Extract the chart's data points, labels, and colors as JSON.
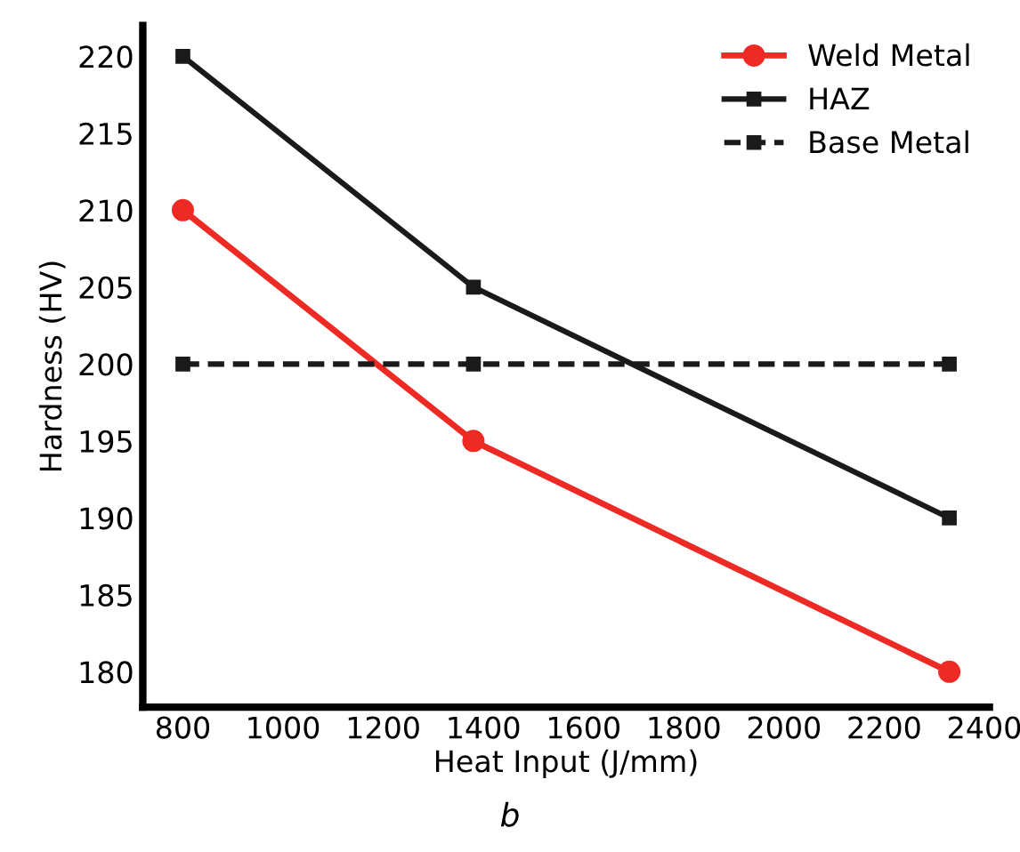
{
  "chart_data": {
    "type": "line",
    "xlabel": "Heat Input (J/mm)",
    "ylabel": "Hardness (HV)",
    "annotations": [
      "b"
    ],
    "xlim": [
      720,
      2410
    ],
    "xticks": [
      800,
      1000,
      1200,
      1400,
      1600,
      1800,
      2000,
      2200,
      2400
    ],
    "ylim": [
      177.7,
      222
    ],
    "yticks": [
      180,
      185,
      190,
      195,
      200,
      205,
      210,
      215,
      220
    ],
    "grid": false,
    "legend": "top right",
    "series": [
      {
        "name": "Weld Metal",
        "color": "#ee2a24",
        "x": [
          800,
          1380,
          2330
        ],
        "values": [
          210,
          195,
          180
        ],
        "marker": "circle",
        "line_style": "solid"
      },
      {
        "name": "HAZ",
        "color": "#1a1a1a",
        "x": [
          800,
          1380,
          2330
        ],
        "values": [
          220,
          205,
          190
        ],
        "marker": "square",
        "line_style": "solid"
      },
      {
        "name": "Base Metal",
        "color": "#1a1a1a",
        "x": [
          800,
          1380,
          2330
        ],
        "values": [
          200,
          200,
          200
        ],
        "marker": "square",
        "line_style": "dashed"
      }
    ]
  }
}
